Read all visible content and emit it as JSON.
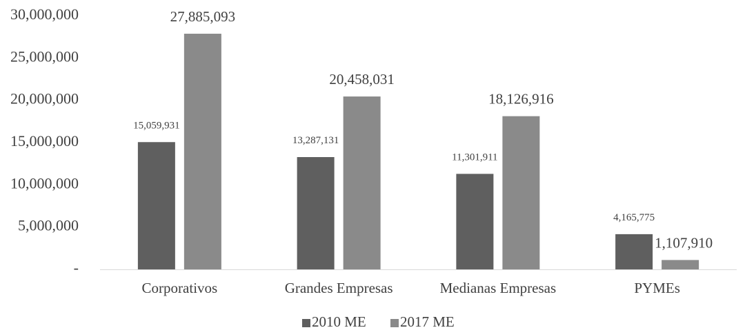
{
  "chart_data": {
    "type": "bar",
    "categories": [
      "Corporativos",
      "Grandes Empresas",
      "Medianas Empresas",
      "PYMEs"
    ],
    "series": [
      {
        "name": "2010 ME",
        "values": [
          15059931,
          13287131,
          11301911,
          4165775
        ],
        "labels": [
          "15,059,931",
          "13,287,131",
          "11,301,911",
          "4,165,775"
        ],
        "color": "#5f5f5f"
      },
      {
        "name": "2017 ME",
        "values": [
          27885093,
          20458031,
          18126916,
          1107910
        ],
        "labels": [
          "27,885,093",
          "20,458,031",
          "18,126,916",
          "1,107,910"
        ],
        "color": "#8a8a8a"
      }
    ],
    "ylim": [
      0,
      30000000
    ],
    "yticks": [
      0,
      5000000,
      10000000,
      15000000,
      20000000,
      25000000,
      30000000
    ],
    "ytick_labels": [
      "-",
      "5,000,000",
      "10,000,000",
      "15,000,000",
      "20,000,000",
      "25,000,000",
      "30,000,000"
    ],
    "grid": false,
    "legend_position": "bottom",
    "title": "",
    "xlabel": "",
    "ylabel": ""
  }
}
